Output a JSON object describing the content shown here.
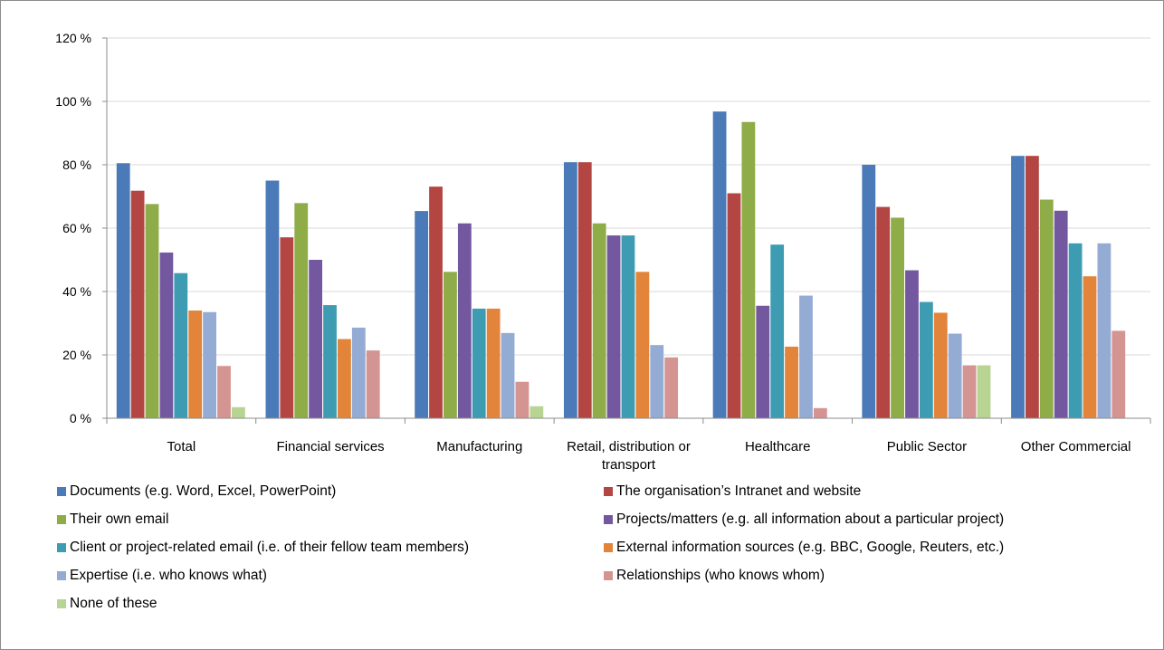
{
  "chart_data": {
    "type": "bar",
    "categories": [
      "Total",
      "Financial services",
      "Manufacturing",
      "Retail, distribution or transport",
      "Healthcare",
      "Public Sector",
      "Other Commercial"
    ],
    "ylim": [
      0,
      120
    ],
    "yticks": [
      "0 %",
      "20 %",
      "40 %",
      "60 %",
      "80 %",
      "100 %",
      "120 %"
    ],
    "grid": true,
    "legend_position": "bottom",
    "series": [
      {
        "name": "Documents (e.g. Word, Excel, PowerPoint)",
        "color": "#4a7ab8",
        "values": [
          80.5,
          75.0,
          65.4,
          80.8,
          96.8,
          80.0,
          82.8
        ]
      },
      {
        "name": "The organisation’s Intranet and website",
        "color": "#b34643",
        "values": [
          71.8,
          57.1,
          73.1,
          80.8,
          71.0,
          66.7,
          82.8
        ]
      },
      {
        "name": "Their own email",
        "color": "#8eac47",
        "values": [
          67.6,
          67.9,
          46.2,
          61.5,
          93.5,
          63.3,
          69.0
        ]
      },
      {
        "name": "Projects/matters (e.g. all information about a particular project)",
        "color": "#7358a0",
        "values": [
          52.3,
          50.0,
          61.5,
          57.7,
          35.5,
          46.7,
          65.5
        ]
      },
      {
        "name": "Client or project-related email (i.e. of their fellow team members)",
        "color": "#3e9cb2",
        "values": [
          45.8,
          35.7,
          34.6,
          57.7,
          54.8,
          36.7,
          55.2
        ]
      },
      {
        "name": "External information sources (e.g. BBC, Google, Reuters, etc.)",
        "color": "#e2843a",
        "values": [
          34.0,
          25.0,
          34.6,
          46.2,
          22.6,
          33.3,
          44.8
        ]
      },
      {
        "name": "Expertise (i.e. who knows what)",
        "color": "#94abd4",
        "values": [
          33.5,
          28.6,
          26.9,
          23.1,
          38.7,
          26.7,
          55.2
        ]
      },
      {
        "name": "Relationships (who knows whom)",
        "color": "#d49592",
        "values": [
          16.5,
          21.4,
          11.5,
          19.2,
          3.2,
          16.7,
          27.6
        ]
      },
      {
        "name": "None of these",
        "color": "#b8d492",
        "values": [
          3.5,
          0,
          3.8,
          0,
          0,
          16.7,
          0
        ]
      }
    ]
  }
}
